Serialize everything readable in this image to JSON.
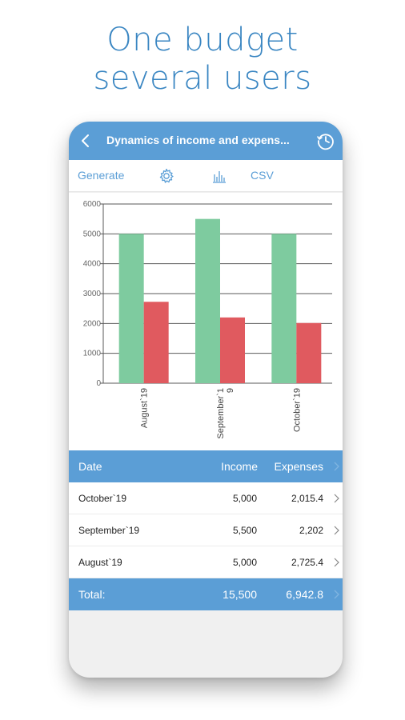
{
  "headline": {
    "line1": "One budget",
    "line2": "several users"
  },
  "app_bar": {
    "title": "Dynamics of income and expens..."
  },
  "toolbar": {
    "generate_label": "Generate",
    "csv_label": "CSV"
  },
  "colors": {
    "accent": "#5b9ed6",
    "income": "#7ecb9f",
    "expenses": "#e05a5f"
  },
  "chart_data": {
    "type": "bar",
    "categories": [
      "August`19",
      "September`19",
      "October`19"
    ],
    "category_labels": [
      "August`19",
      "September`1\n9",
      "October`19"
    ],
    "series": [
      {
        "values": [
          5000,
          5500,
          5000
        ]
      },
      {
        "values": [
          2725.4,
          2202,
          2015.4
        ]
      }
    ],
    "ylim": [
      0,
      6000
    ],
    "yticks": [
      "0",
      "1000",
      "2000",
      "3000",
      "4000",
      "5000",
      "6000"
    ],
    "grid": true
  },
  "table": {
    "headers": {
      "date": "Date",
      "income": "Income",
      "expenses": "Expenses"
    },
    "rows": [
      {
        "date": "October`19",
        "income": "5,000",
        "expenses": "2,015.4"
      },
      {
        "date": "September`19",
        "income": "5,500",
        "expenses": "2,202"
      },
      {
        "date": "August`19",
        "income": "5,000",
        "expenses": "2,725.4"
      }
    ],
    "total": {
      "label": "Total:",
      "income": "15,500",
      "expenses": "6,942.8"
    }
  }
}
